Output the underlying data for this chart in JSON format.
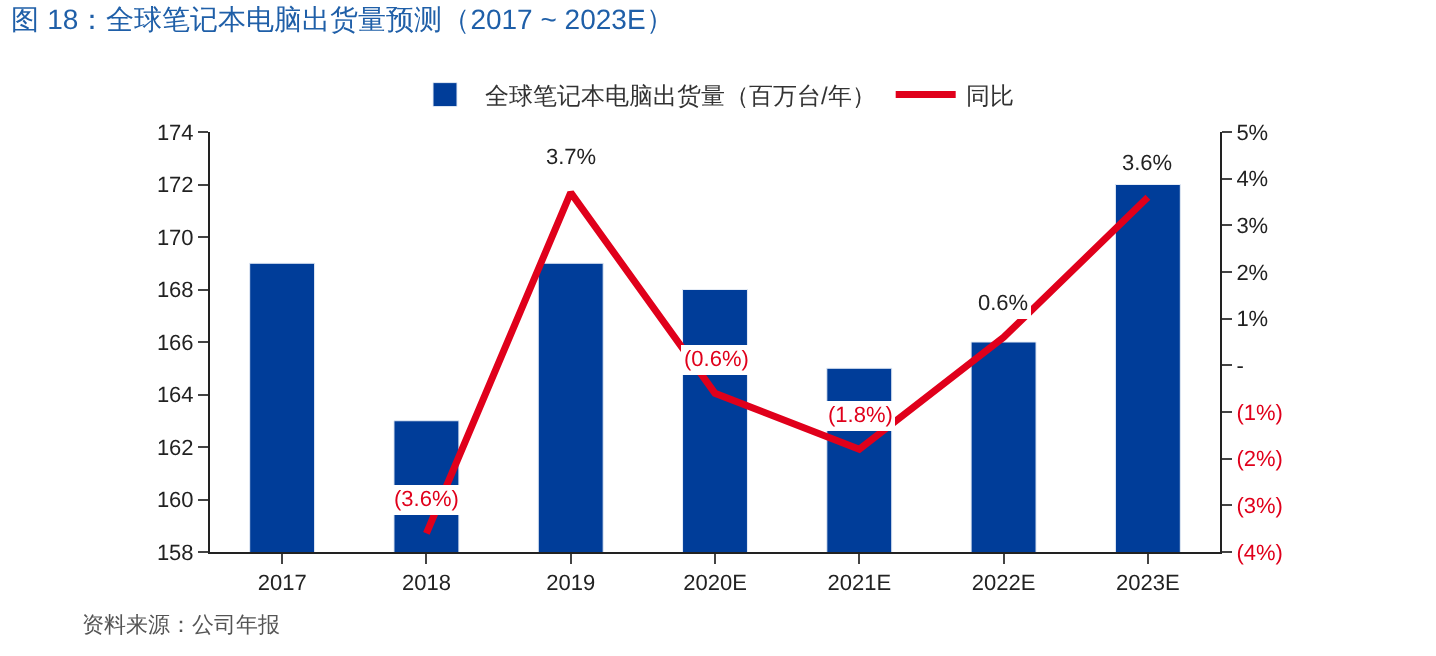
{
  "chart_data": {
    "type": "bar",
    "title": "图 18：全球笔记本电脑出货量预测（2017 ~ 2023E）",
    "categories": [
      "2017",
      "2018",
      "2019",
      "2020E",
      "2021E",
      "2022E",
      "2023E"
    ],
    "series": [
      {
        "name": "全球笔记本电脑出货量（百万台/年）",
        "color": "#003d99",
        "values": [
          169,
          163,
          169,
          168,
          165,
          166,
          172
        ]
      },
      {
        "name": "同比",
        "type": "line",
        "axis": "y2",
        "color": "#e0001b",
        "values": [
          null,
          -3.6,
          3.7,
          -0.6,
          -1.8,
          0.6,
          3.6
        ],
        "value_labels": [
          null,
          "(3.6%)",
          "3.7%",
          "(0.6%)",
          "(1.8%)",
          "0.6%",
          "3.6%"
        ]
      }
    ],
    "ylim": [
      158,
      174
    ],
    "yticks": [
      158,
      160,
      162,
      164,
      166,
      168,
      170,
      172,
      174
    ],
    "y2lim": [
      -4,
      5
    ],
    "y2ticks": [
      {
        "value": 5,
        "label": "5%"
      },
      {
        "value": 4,
        "label": "4%"
      },
      {
        "value": 3,
        "label": "3%"
      },
      {
        "value": 2,
        "label": "2%"
      },
      {
        "value": 1,
        "label": "1%"
      },
      {
        "value": 0,
        "label": "-"
      },
      {
        "value": -1,
        "label": "(1%)"
      },
      {
        "value": -2,
        "label": "(2%)"
      },
      {
        "value": -3,
        "label": "(3%)"
      },
      {
        "value": -4,
        "label": "(4%)"
      }
    ],
    "grid": false,
    "legend": "top",
    "marker": "none",
    "line_style": "solid",
    "annotations": [
      "资料来源：公司年报"
    ]
  }
}
